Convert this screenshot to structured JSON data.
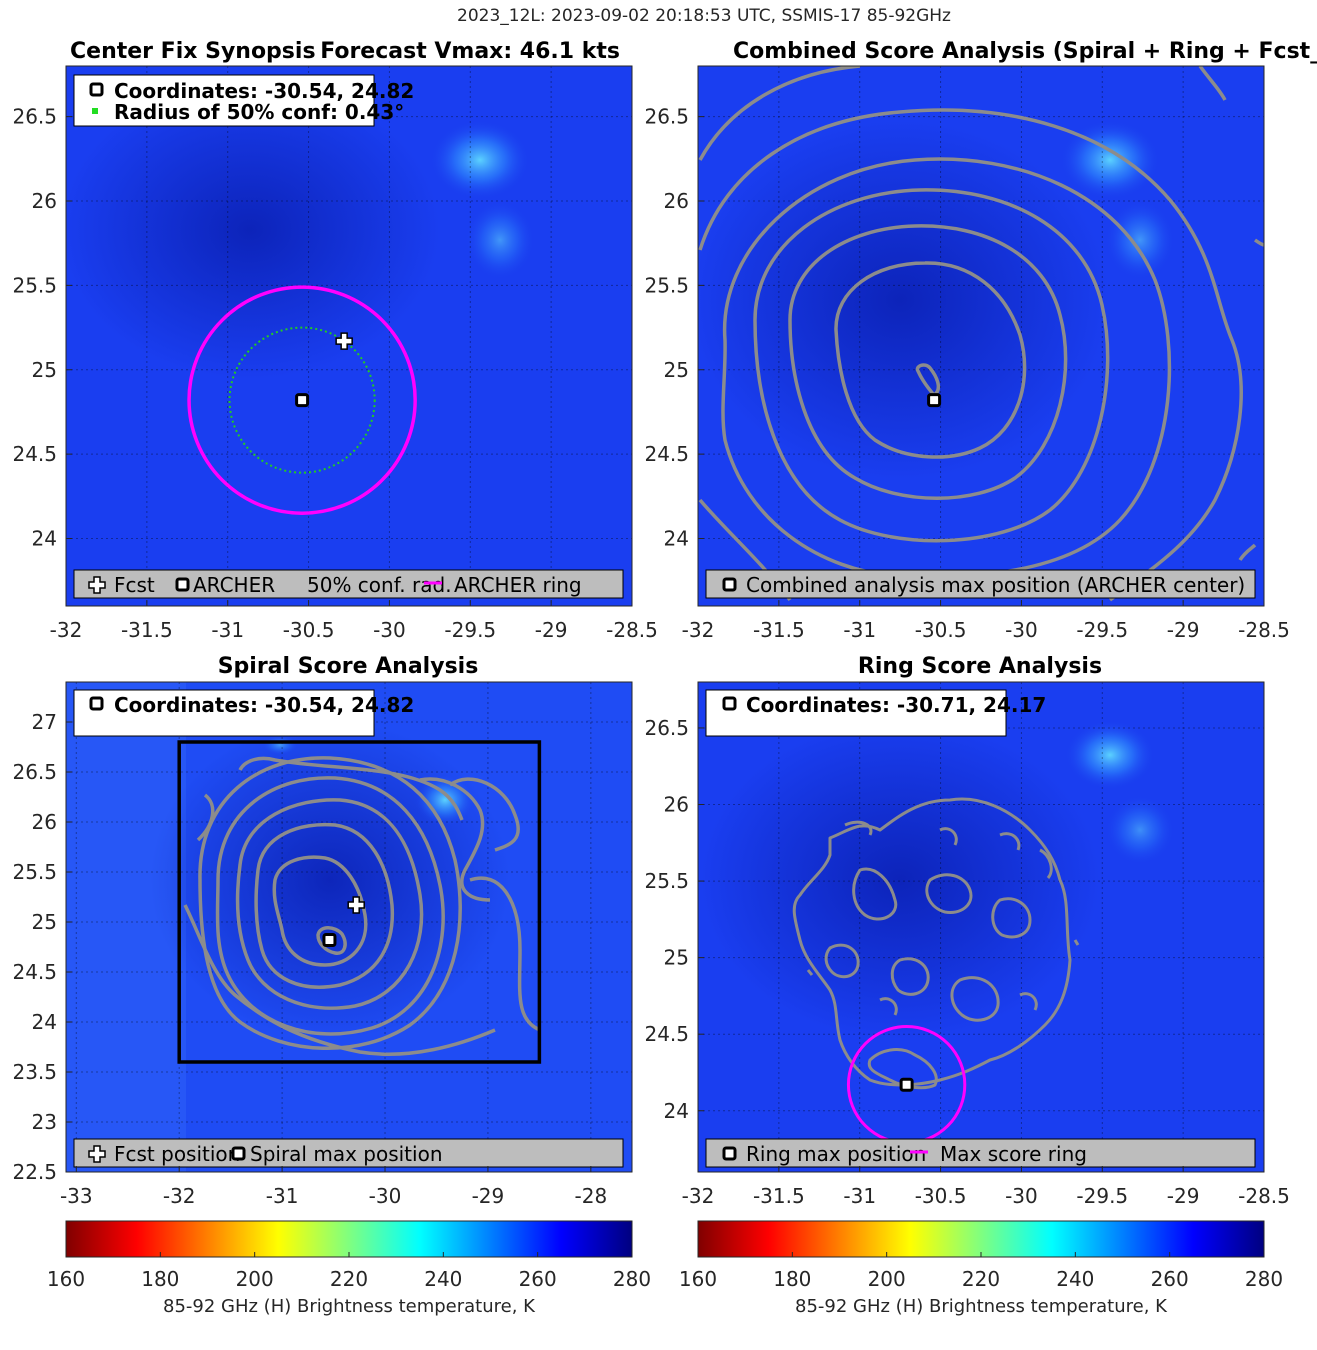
{
  "figure": {
    "suptitle": "2023_12L: 2023-09-02 20:18:53 UTC, SSMIS-17 85-92GHz"
  },
  "colors": {
    "background_blue": "#1a3ef0",
    "contour": "#8c8c8c",
    "magenta_ring": "#ff00ff",
    "conf_circle": "#22cc22",
    "legend_fill": "#bdbdbd"
  },
  "chart_data": [
    {
      "id": "synopsis",
      "type": "heatmap",
      "title_left": "Center Fix Synopsis",
      "title_right": "Forecast Vmax: 46.1 kts",
      "xlim": [
        -32,
        -28.5
      ],
      "ylim": [
        23.6,
        26.8
      ],
      "xticks": [
        -32,
        -31.5,
        -31,
        -30.5,
        -30,
        -29.5,
        -29,
        -28.5
      ],
      "xtick_labels": [
        "-32",
        "-31.5",
        "-31",
        "-30.5",
        "-30",
        "-29.5",
        "-29",
        "-28.5"
      ],
      "yticks": [
        24,
        24.5,
        25,
        25.5,
        26,
        26.5
      ],
      "ytick_labels": [
        "24",
        "24.5",
        "25",
        "25.5",
        "26",
        "26.5"
      ],
      "archer_center": [
        -30.54,
        24.82
      ],
      "fcst_position": [
        -30.28,
        25.17
      ],
      "conf_radius_deg": 0.43,
      "ring_radius_deg": 0.67,
      "info_lines": [
        "Coordinates: -30.54, 24.82",
        "Radius of 50% conf: 0.43°"
      ],
      "legend": [
        "Fcst",
        "ARCHER",
        "50% conf. rad.",
        "ARCHER ring"
      ]
    },
    {
      "id": "combined",
      "type": "heatmap",
      "title": "Combined Score Analysis (Spiral + Ring + Fcst_Pe",
      "xlim": [
        -32,
        -28.5
      ],
      "ylim": [
        23.6,
        26.8
      ],
      "xticks": [
        -32,
        -31.5,
        -31,
        -30.5,
        -30,
        -29.5,
        -29,
        -28.5
      ],
      "xtick_labels": [
        "-32",
        "-31.5",
        "-31",
        "-30.5",
        "-30",
        "-29.5",
        "-29",
        "-28.5"
      ],
      "yticks": [
        24,
        24.5,
        25,
        25.5,
        26,
        26.5
      ],
      "ytick_labels": [
        "24",
        "24.5",
        "25",
        "25.5",
        "26",
        "26.5"
      ],
      "max_position": [
        -30.54,
        24.82
      ],
      "contour_levels": 7,
      "legend": [
        "Combined analysis max position (ARCHER center)"
      ]
    },
    {
      "id": "spiral",
      "type": "heatmap",
      "title": "Spiral Score Analysis",
      "xlim": [
        -33.1,
        -27.6
      ],
      "ylim": [
        22.5,
        27.4
      ],
      "xticks": [
        -33,
        -32,
        -31,
        -30,
        -29,
        -28
      ],
      "xtick_labels": [
        "-33",
        "-32",
        "-31",
        "-30",
        "-29",
        "-28"
      ],
      "yticks": [
        22.5,
        23,
        23.5,
        24,
        24.5,
        25,
        25.5,
        26,
        26.5,
        27
      ],
      "ytick_labels": [
        "22.5",
        "23",
        "23.5",
        "24",
        "24.5",
        "25",
        "25.5",
        "26",
        "26.5",
        "27"
      ],
      "max_position": [
        -30.54,
        24.82
      ],
      "fcst_position": [
        -30.28,
        25.17
      ],
      "search_box": {
        "x0": -32,
        "x1": -28.5,
        "y0": 23.6,
        "y1": 26.8
      },
      "info_lines": [
        "Coordinates: -30.54, 24.82"
      ],
      "legend": [
        "Fcst position",
        "Spiral max position"
      ]
    },
    {
      "id": "ring",
      "type": "heatmap",
      "title": "Ring Score Analysis",
      "xlim": [
        -32,
        -28.5
      ],
      "ylim": [
        23.6,
        26.8
      ],
      "xticks": [
        -32,
        -31.5,
        -31,
        -30.5,
        -30,
        -29.5,
        -29,
        -28.5
      ],
      "xtick_labels": [
        "-32",
        "-31.5",
        "-31",
        "-30.5",
        "-30",
        "-29.5",
        "-29",
        "-28.5"
      ],
      "yticks": [
        24,
        24.5,
        25,
        25.5,
        26,
        26.5
      ],
      "ytick_labels": [
        "24",
        "24.5",
        "25",
        "25.5",
        "26",
        "26.5"
      ],
      "max_position": [
        -30.71,
        24.17
      ],
      "ring_radius_deg": 0.38,
      "info_lines": [
        "Coordinates: -30.71, 24.17"
      ],
      "legend": [
        "Ring max position",
        "Max score ring"
      ]
    }
  ],
  "colorbars": [
    {
      "label": "85-92 GHz (H) Brightness temperature, K",
      "range": [
        160,
        280
      ],
      "ticks": [
        160,
        180,
        200,
        220,
        240,
        260,
        280
      ],
      "tick_labels": [
        "160",
        "180",
        "200",
        "220",
        "240",
        "260",
        "280"
      ]
    },
    {
      "label": "85-92 GHz (H) Brightness temperature, K",
      "range": [
        160,
        280
      ],
      "ticks": [
        160,
        180,
        200,
        220,
        240,
        260,
        280
      ],
      "tick_labels": [
        "160",
        "180",
        "200",
        "220",
        "240",
        "260",
        "280"
      ]
    }
  ]
}
